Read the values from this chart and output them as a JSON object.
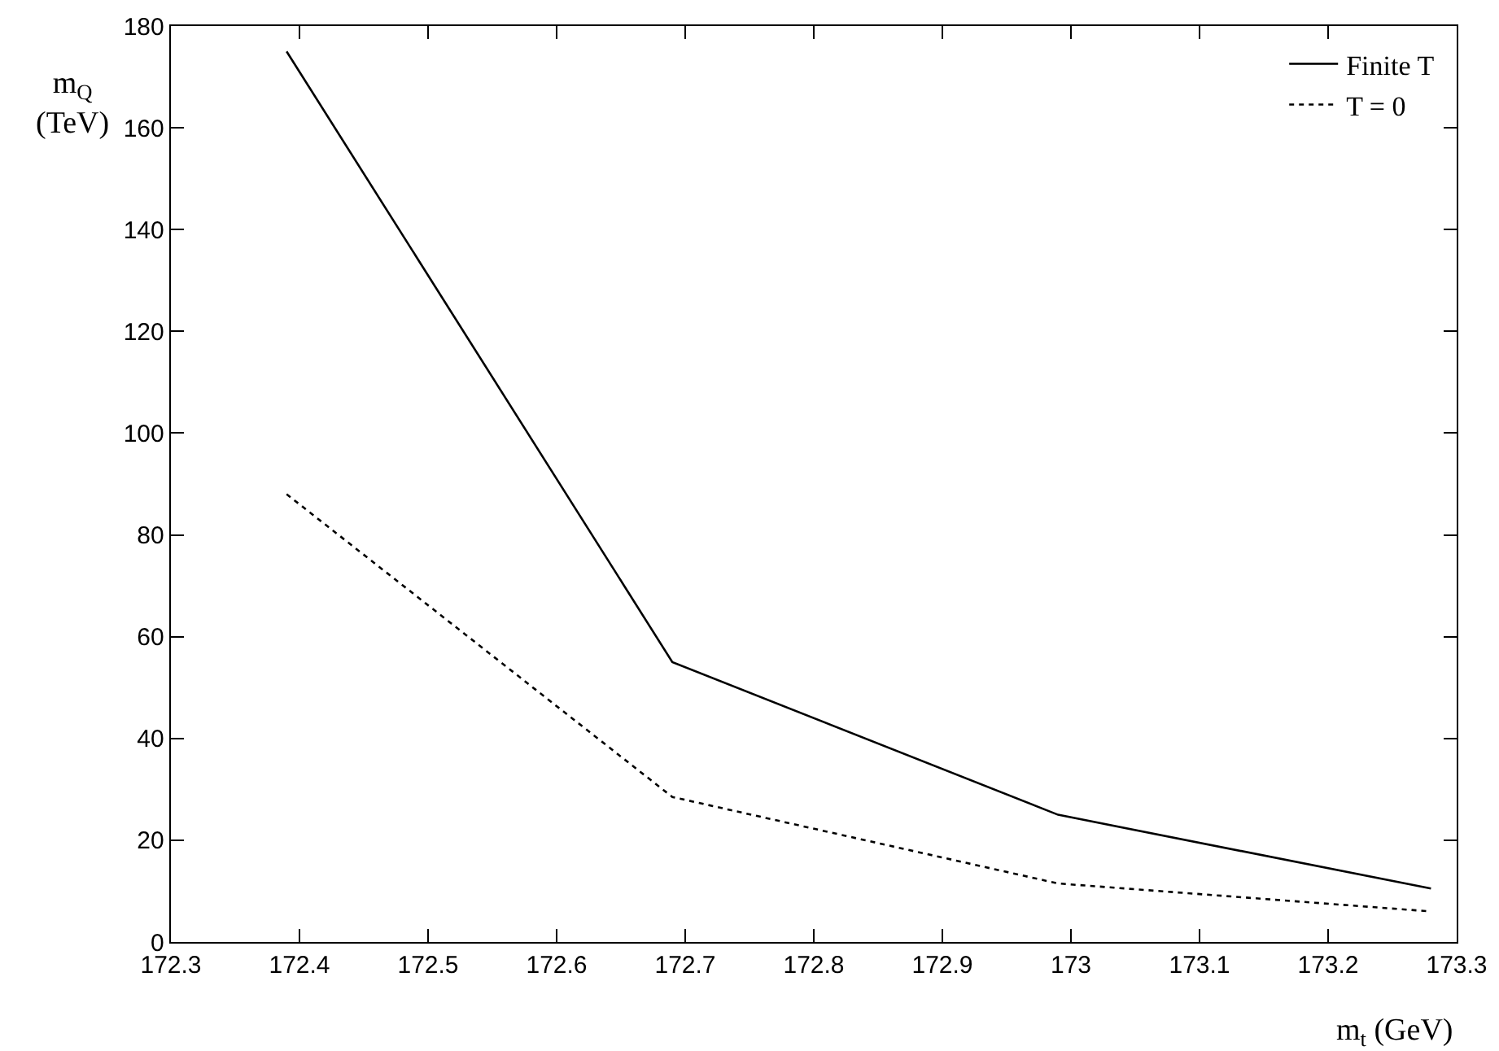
{
  "chart_data": {
    "type": "line",
    "xlabel": "m$_{t}$ (GeV)",
    "ylabel": "m$_{Q}$ (TeV)",
    "x": [
      172.39,
      172.69,
      172.99,
      173.28
    ],
    "series": [
      {
        "name": "Finite T",
        "color": "#000000",
        "line_style": "solid",
        "values": [
          175,
          55,
          25,
          10.5
        ]
      },
      {
        "name": "T = 0",
        "color": "#000000",
        "line_style": "dotted",
        "values": [
          88,
          28.5,
          11.5,
          6
        ]
      }
    ],
    "xlim": [
      172.3,
      173.3
    ],
    "xticks": [
      172.3,
      172.4,
      172.5,
      172.6,
      172.7,
      172.8,
      172.9,
      173,
      173.1,
      173.2,
      173.3
    ],
    "ylim": [
      0,
      180
    ],
    "yticks": [
      0,
      20,
      40,
      60,
      80,
      100,
      120,
      140,
      160,
      180
    ],
    "grid": false,
    "legend": "top right",
    "marker": "none"
  }
}
